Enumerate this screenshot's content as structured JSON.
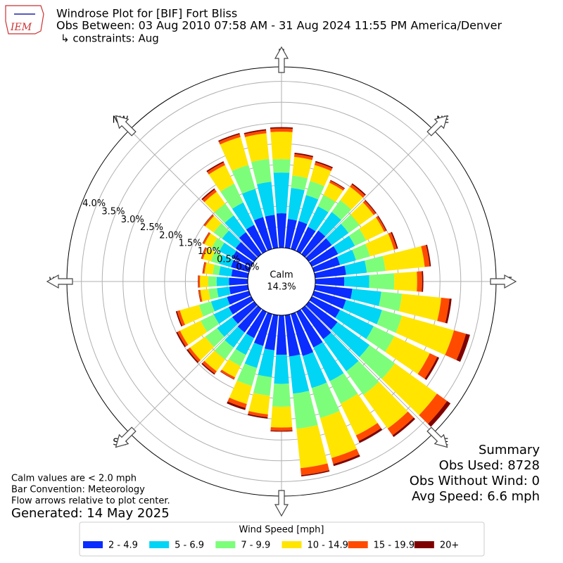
{
  "chart_data": {
    "type": "windrose",
    "logo_text": "IEM",
    "title": "Windrose Plot for [BIF] Fort Bliss",
    "subtitle": "Obs Between: 03 Aug 2010 07:58 AM - 31 Aug 2024 11:55 PM America/Denver",
    "constraints": "↳ constraints: Aug",
    "x": [
      0,
      10,
      20,
      30,
      40,
      50,
      60,
      70,
      80,
      90,
      100,
      110,
      120,
      130,
      140,
      150,
      160,
      170,
      180,
      190,
      200,
      210,
      220,
      230,
      240,
      250,
      260,
      270,
      280,
      290,
      300,
      310,
      320,
      330,
      340,
      350
    ],
    "xticks": [
      {
        "value": 0,
        "label": "N"
      },
      {
        "value": 45,
        "label": "NE"
      },
      {
        "value": 90,
        "label": "E"
      },
      {
        "value": 135,
        "label": "SE"
      },
      {
        "value": 180,
        "label": "S"
      },
      {
        "value": 225,
        "label": "SW"
      },
      {
        "value": 270,
        "label": "W"
      },
      {
        "value": 315,
        "label": "NW"
      }
    ],
    "ylim": [
      0,
      4.35
    ],
    "yticks": [
      {
        "value": 0,
        "label": "0.0%"
      },
      {
        "value": 0.5,
        "label": "0.5%"
      },
      {
        "value": 1,
        "label": "1.0%"
      },
      {
        "value": 1.5,
        "label": "1.5%"
      },
      {
        "value": 2,
        "label": "2.0%"
      },
      {
        "value": 2.5,
        "label": "2.5%"
      },
      {
        "value": 3,
        "label": "3.0%"
      },
      {
        "value": 3.5,
        "label": "3.5%"
      },
      {
        "value": 4,
        "label": "4.0%"
      }
    ],
    "grid": true,
    "calm": {
      "name": "Calm",
      "value": 14.3,
      "label": "14.3%"
    },
    "legend_title": "Wind Speed [mph]",
    "series": [
      {
        "name": "2 - 4.9",
        "color": "#0a2cff",
        "values": [
          0.83,
          0.7,
          0.7,
          0.65,
          0.7,
          0.68,
          0.7,
          0.65,
          0.75,
          0.7,
          0.9,
          0.8,
          0.75,
          0.85,
          0.9,
          0.95,
          1.05,
          1.0,
          0.95,
          0.85,
          0.8,
          0.7,
          0.7,
          0.65,
          0.6,
          0.55,
          0.45,
          0.45,
          0.4,
          0.45,
          0.5,
          0.55,
          0.65,
          0.7,
          0.8,
          0.8
        ]
      },
      {
        "name": "5 - 6.9",
        "color": "#00d5f5",
        "values": [
          0.98,
          0.75,
          0.65,
          0.55,
          0.55,
          0.5,
          0.45,
          0.4,
          0.5,
          0.6,
          0.7,
          0.9,
          0.9,
          0.95,
          0.95,
          0.9,
          0.8,
          0.9,
          0.7,
          0.65,
          0.55,
          0.45,
          0.45,
          0.45,
          0.4,
          0.4,
          0.3,
          0.3,
          0.3,
          0.3,
          0.35,
          0.4,
          0.5,
          0.6,
          0.7,
          0.8
        ]
      },
      {
        "name": "7 - 9.9",
        "color": "#7dfe7a",
        "values": [
          0.32,
          0.3,
          0.35,
          0.3,
          0.35,
          0.32,
          0.3,
          0.35,
          0.45,
          0.6,
          0.5,
          0.5,
          0.55,
          0.75,
          0.7,
          0.6,
          0.75,
          0.85,
          0.55,
          0.45,
          0.45,
          0.3,
          0.35,
          0.35,
          0.35,
          0.3,
          0.2,
          0.2,
          0.15,
          0.2,
          0.2,
          0.25,
          0.35,
          0.5,
          0.6,
          0.55
        ]
      },
      {
        "name": "10 - 14.9",
        "color": "#ffe500",
        "values": [
          0.66,
          0.45,
          0.4,
          0.33,
          0.4,
          0.42,
          0.48,
          0.6,
          0.95,
          0.55,
          0.95,
          1.3,
          0.95,
          1.25,
          1.0,
          0.85,
          1.0,
          0.95,
          0.5,
          0.45,
          0.45,
          0.3,
          0.35,
          0.45,
          0.55,
          0.48,
          0.2,
          0.2,
          0.2,
          0.2,
          0.2,
          0.25,
          0.35,
          0.5,
          0.7,
          0.62
        ]
      },
      {
        "name": "15 - 19.9",
        "color": "#ff4a00",
        "values": [
          0.08,
          0.07,
          0.07,
          0.05,
          0.07,
          0.06,
          0.05,
          0.07,
          0.12,
          0.12,
          0.2,
          0.3,
          0.2,
          0.3,
          0.2,
          0.15,
          0.15,
          0.17,
          0.08,
          0.07,
          0.1,
          0.05,
          0.07,
          0.07,
          0.07,
          0.07,
          0.04,
          0.04,
          0.04,
          0.04,
          0.04,
          0.04,
          0.07,
          0.07,
          0.07,
          0.07
        ]
      },
      {
        "name": "20+",
        "color": "#7f0000",
        "values": [
          0.03,
          0.03,
          0.03,
          0.02,
          0.03,
          0.02,
          0.02,
          0.03,
          0.03,
          0.03,
          0.05,
          0.1,
          0.05,
          0.1,
          0.05,
          0.05,
          0.05,
          0.03,
          0.02,
          0.03,
          0.05,
          0.01,
          0.03,
          0.03,
          0.03,
          0.03,
          0.01,
          0.01,
          0.01,
          0.01,
          0.01,
          0.01,
          0.03,
          0.03,
          0.03,
          0.03
        ]
      }
    ],
    "notes": [
      "Calm values are < 2.0 mph",
      "Bar Convention: Meteorology",
      "Flow arrows relative to plot center."
    ],
    "generated": "Generated: 14 May 2025",
    "summary": [
      "Summary",
      "Obs Used: 8728",
      "Obs Without Wind: 0",
      "Avg Speed: 6.6 mph"
    ]
  }
}
